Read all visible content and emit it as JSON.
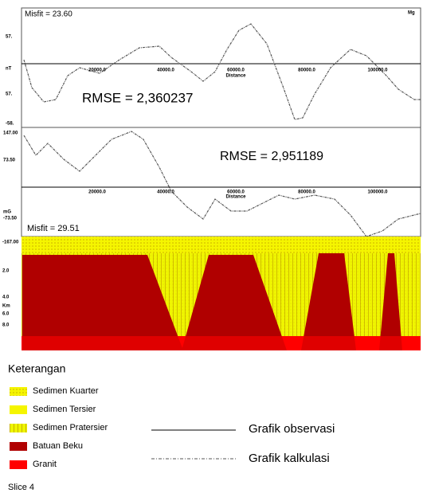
{
  "top_panel": {
    "misfit": "Misfit = 23.60",
    "rmse": "RMSE = 2,360237",
    "corner": "Mg",
    "y_labels": [
      "57.",
      "nT",
      "57.",
      "-58."
    ],
    "x_labels": [
      "20000.0",
      "40000.0",
      "60000.0",
      "80000.0",
      "100000.0"
    ],
    "x_title": "Distance"
  },
  "middle_panel": {
    "rmse": "RMSE = 2,951189",
    "misfit": "Misfit = 29.51",
    "y_labels": [
      "147.00",
      "73.50",
      "mG",
      "-73.50"
    ],
    "x_labels": [
      "20000.0",
      "40000.0",
      "60000.0",
      "80000.0",
      "100000.0"
    ],
    "x_title": "Distance"
  },
  "model_panel": {
    "y_labels": [
      "-167.00",
      "2.0",
      "4.0",
      "Km",
      "6.0",
      "8.0"
    ]
  },
  "legend": {
    "title": "Keterangan",
    "items": [
      "Sedimen Kuarter",
      "Sedimen Tersier",
      "Sedimen Pratersier",
      "Batuan Beku",
      "Granit"
    ],
    "lines": [
      "Grafik observasi",
      "Grafik kalkulasi"
    ]
  },
  "footer": "Slice 4"
}
